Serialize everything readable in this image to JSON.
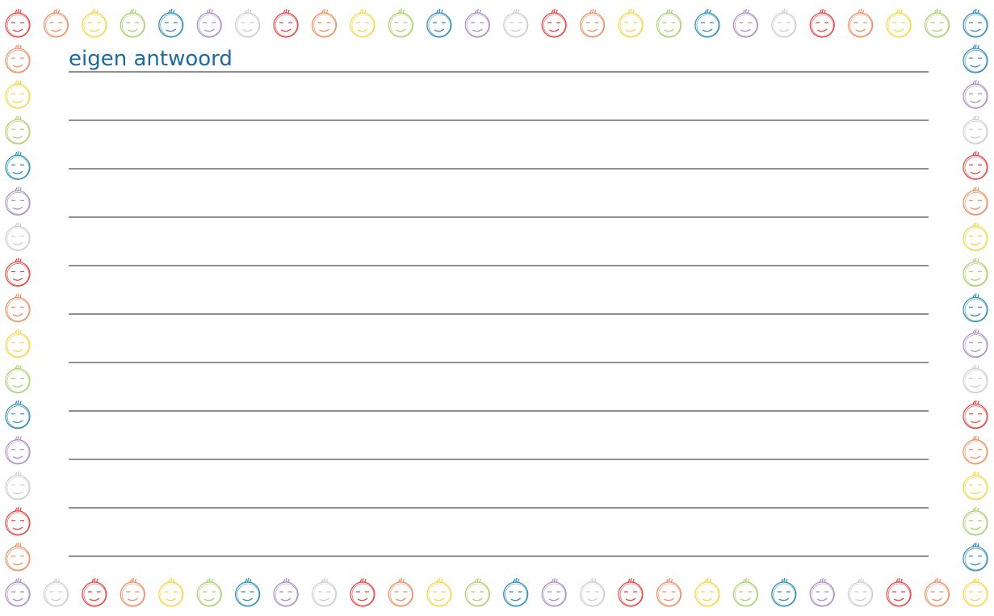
{
  "title": "eigen antwoord"
}
